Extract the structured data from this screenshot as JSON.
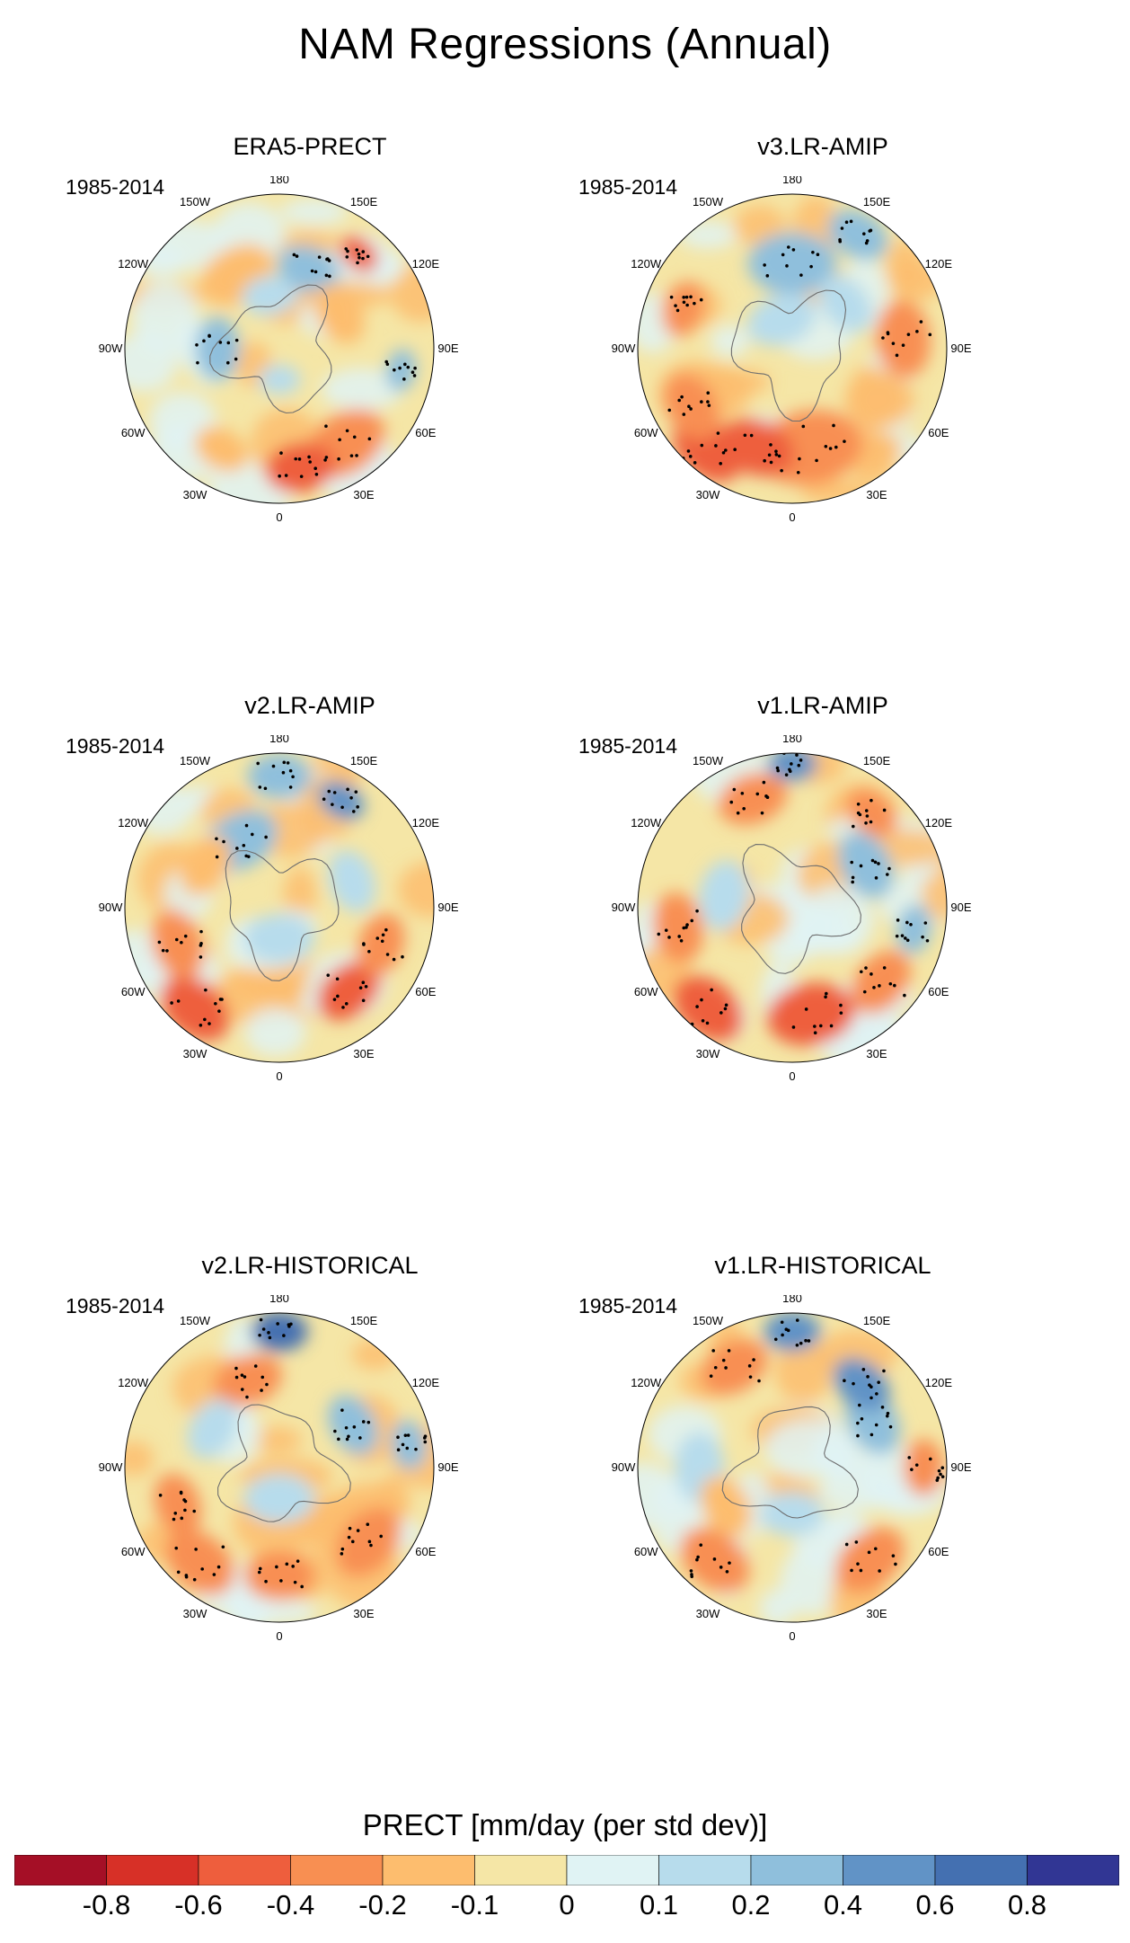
{
  "title": "NAM Regressions (Annual)",
  "period": "1985-2014",
  "lon_labels": [
    "180",
    "150E",
    "120E",
    "90E",
    "60E",
    "30E",
    "0",
    "30W",
    "60W",
    "90W",
    "120W",
    "150W"
  ],
  "colors": {
    "land_outline": "#6e6e6e",
    "stipple": "#000000",
    "map_border": "#000000"
  },
  "chart_data": [
    {
      "type": "heatmap",
      "projection": "north-polar-stereographic",
      "title": "ERA5-PRECT",
      "period": "1985-2014"
    },
    {
      "type": "heatmap",
      "projection": "north-polar-stereographic",
      "title": "v3.LR-AMIP",
      "period": "1985-2014"
    },
    {
      "type": "heatmap",
      "projection": "north-polar-stereographic",
      "title": "v2.LR-AMIP",
      "period": "1985-2014"
    },
    {
      "type": "heatmap",
      "projection": "north-polar-stereographic",
      "title": "v1.LR-AMIP",
      "period": "1985-2014"
    },
    {
      "type": "heatmap",
      "projection": "north-polar-stereographic",
      "title": "v2.LR-HISTORICAL",
      "period": "1985-2014"
    },
    {
      "type": "heatmap",
      "projection": "north-polar-stereographic",
      "title": "v1.LR-HISTORICAL",
      "period": "1985-2014"
    }
  ],
  "colorbar": {
    "title": "PRECT [mm/day (per std dev)]",
    "colors": [
      "#a50f26",
      "#d73027",
      "#ee5e3d",
      "#f88f52",
      "#fdbd6e",
      "#f5e6a6",
      "#e0f3f4",
      "#b7dcec",
      "#8fbfdc",
      "#6193c6",
      "#4470b1",
      "#313694"
    ],
    "ticks": [
      "-0.8",
      "-0.6",
      "-0.4",
      "-0.2",
      "-0.1",
      "0",
      "0.1",
      "0.2",
      "0.4",
      "0.6",
      "0.8"
    ]
  }
}
